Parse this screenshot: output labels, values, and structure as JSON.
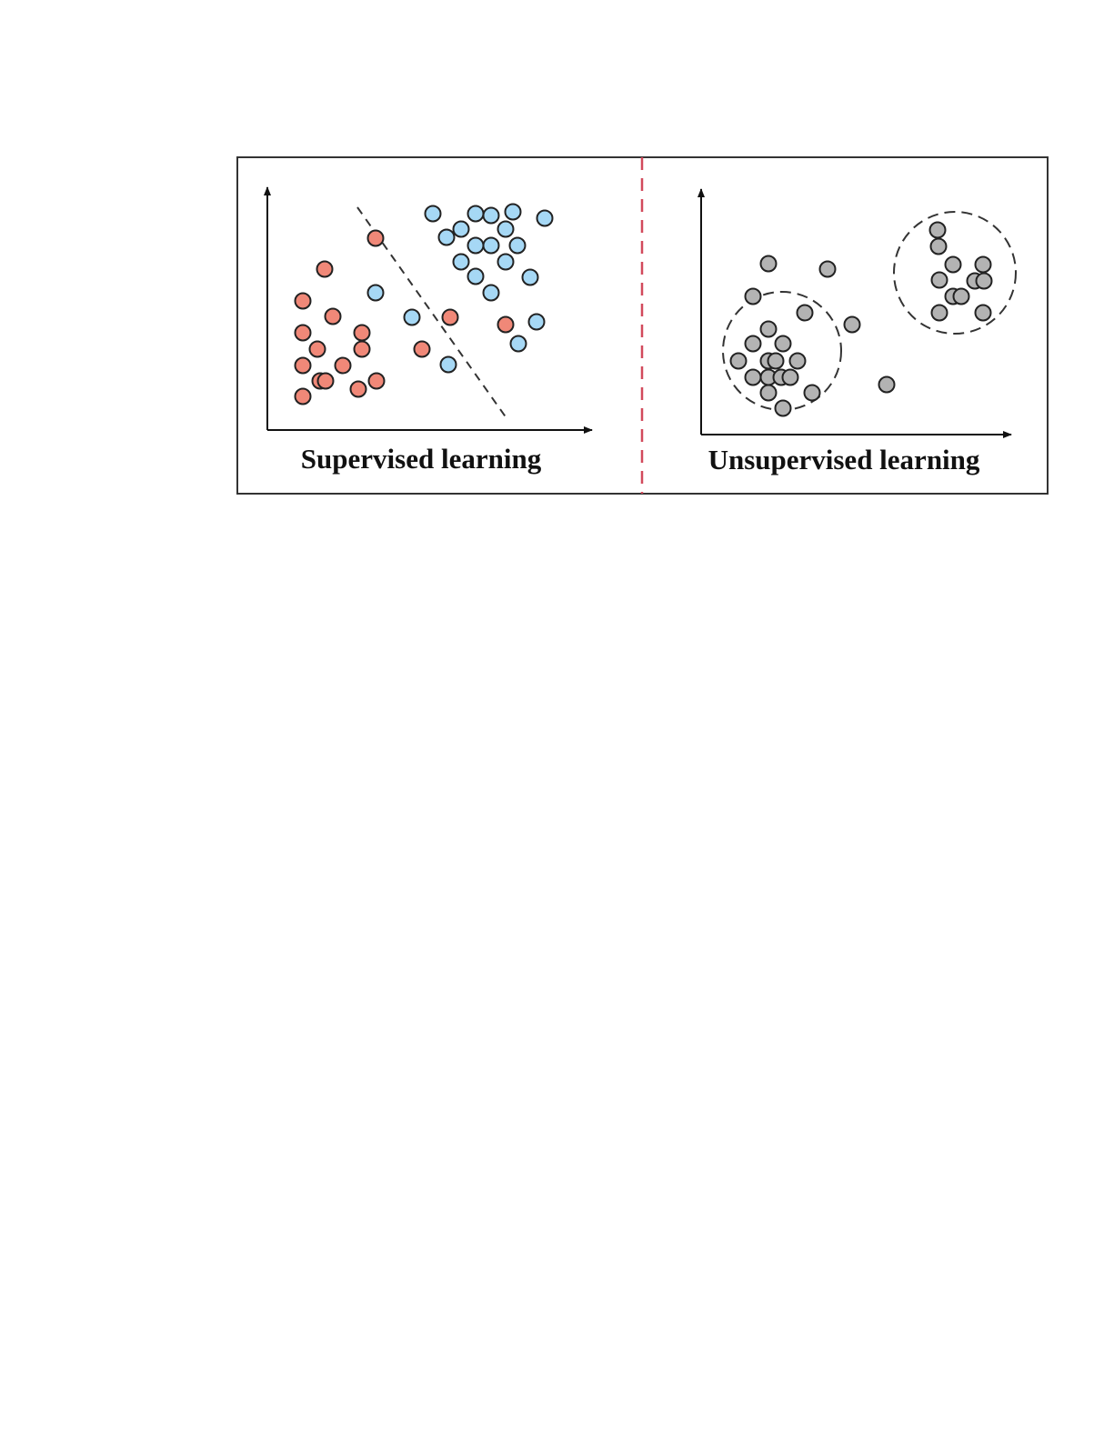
{
  "panels": [
    {
      "title": "Supervised learning",
      "classes": [
        {
          "color": "#f08878"
        },
        {
          "color": "#a6d8f5"
        }
      ]
    },
    {
      "title": "Unsupervised learning",
      "classes": [
        {
          "color": "#b3b3b3"
        }
      ]
    }
  ],
  "colors": {
    "divider": "#d24a5c",
    "frame": "#333333",
    "outline": "#222222"
  }
}
